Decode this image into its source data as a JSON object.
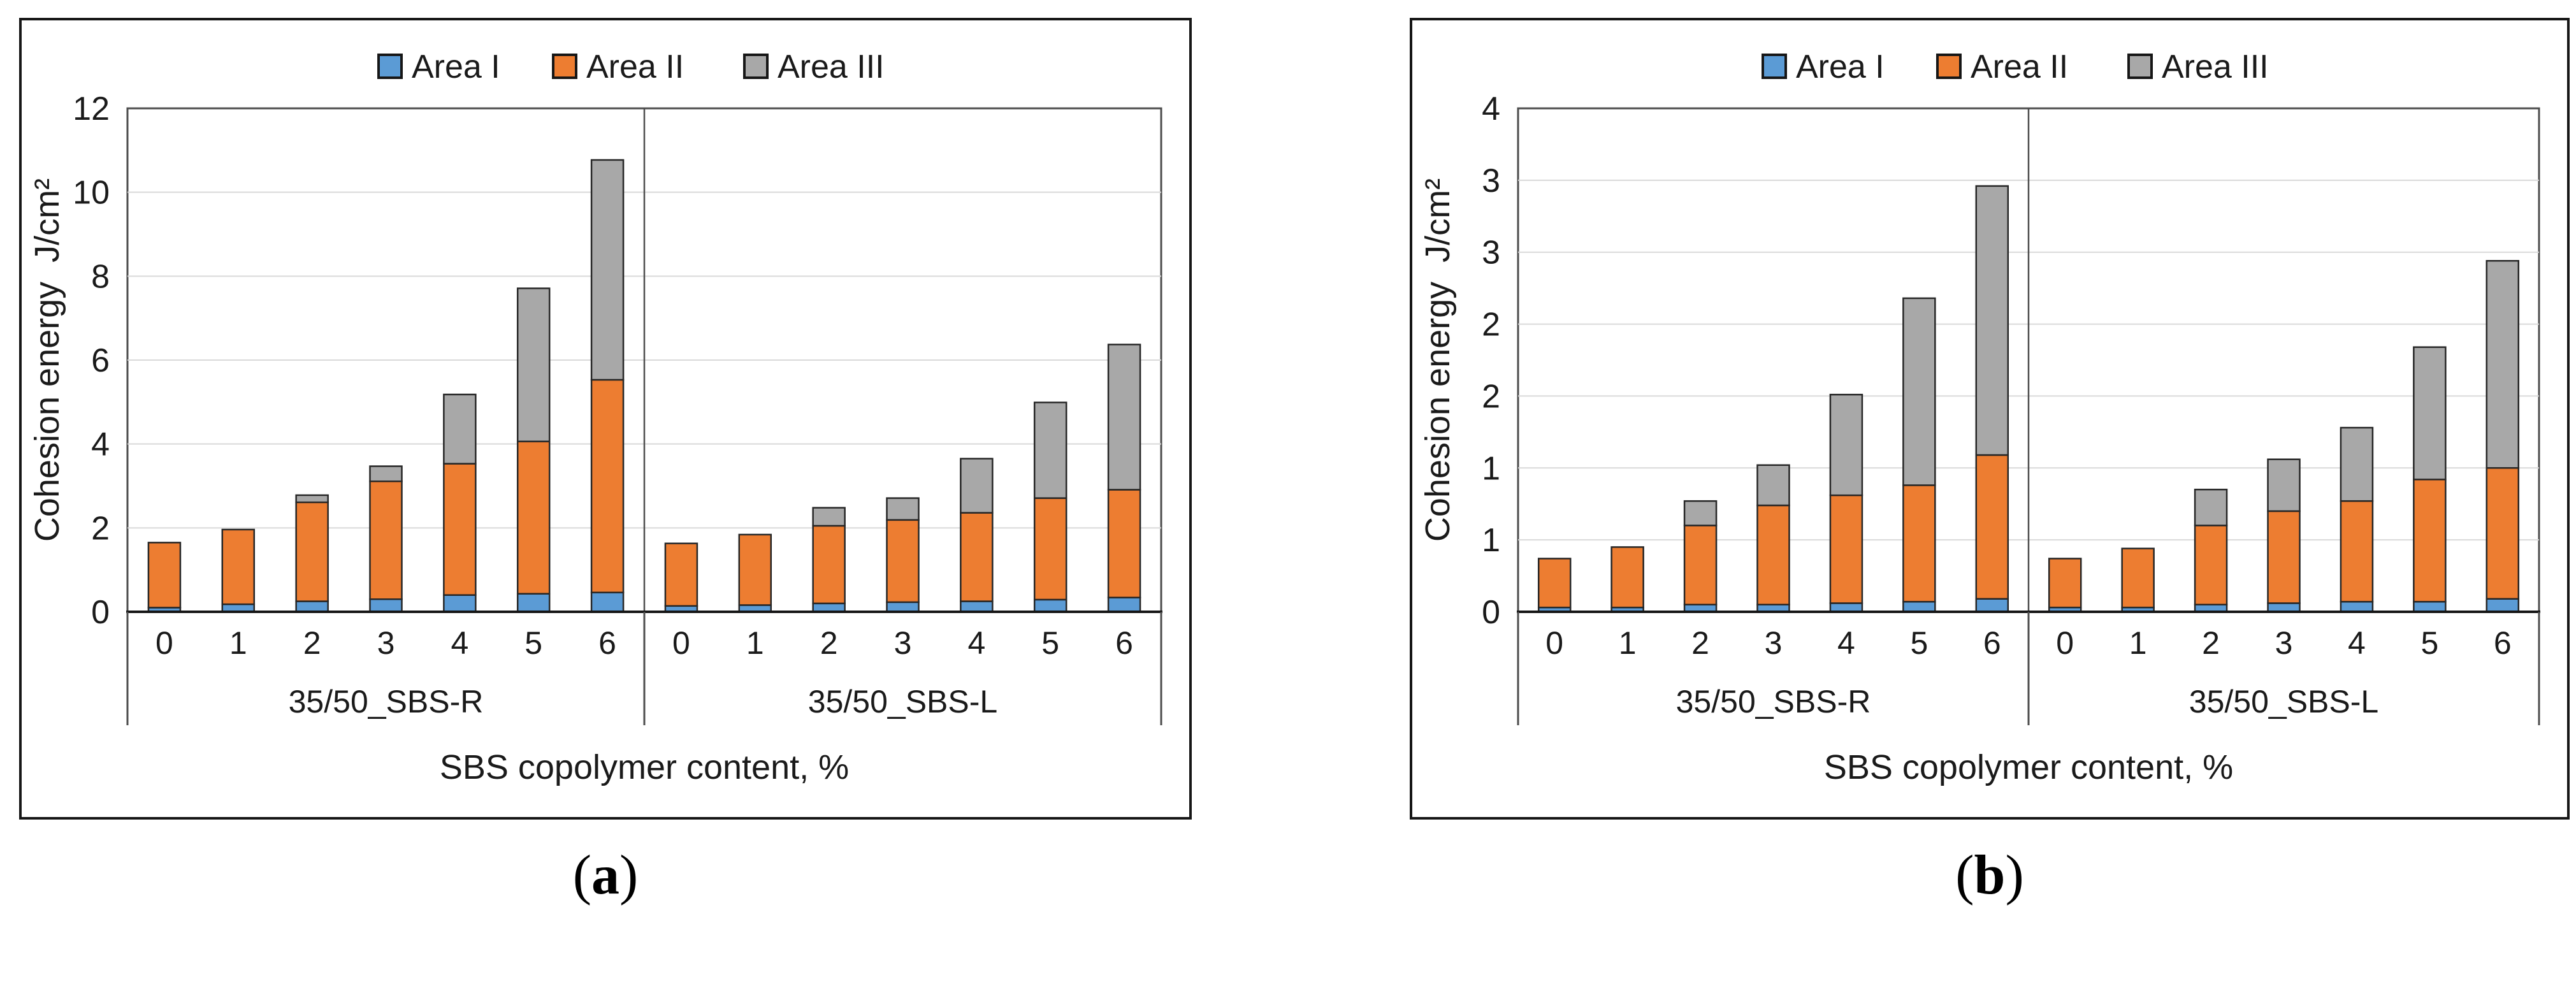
{
  "figure": {
    "background": "#ffffff",
    "series_names": [
      "Area I",
      "Area II",
      "Area III"
    ],
    "series_colors": [
      "#5B9BD5",
      "#ED7D31",
      "#A8A8A8"
    ],
    "segment_stroke": "#262626",
    "gridline_color": "#D9D9D9",
    "axis_color": "#4D4D4D",
    "text_color": "#1A1A1A"
  },
  "chart_data": [
    {
      "type": "bar",
      "stacked": true,
      "caption_prefix": "(",
      "caption_letter": "a",
      "caption_suffix": ")",
      "ylabel": "Cohesion energy",
      "ylabel_unit": "J/cm²",
      "xlabel": "SBS copolymer content, %",
      "ylim": [
        0,
        12
      ],
      "y_major": 2,
      "grid": true,
      "legend_position": "top",
      "y_ticks": [
        {
          "v": 0,
          "label": "0"
        },
        {
          "v": 2,
          "label": "2"
        },
        {
          "v": 4,
          "label": "4"
        },
        {
          "v": 6,
          "label": "6"
        },
        {
          "v": 8,
          "label": "8"
        },
        {
          "v": 10,
          "label": "10"
        },
        {
          "v": 12,
          "label": "12"
        }
      ],
      "categories": [
        "0",
        "1",
        "2",
        "3",
        "4",
        "5",
        "6"
      ],
      "groups": [
        {
          "label": "35/50_SBS-R",
          "series": [
            {
              "name": "Area I",
              "values": [
                0.1,
                0.18,
                0.25,
                0.3,
                0.4,
                0.43,
                0.46
              ]
            },
            {
              "name": "Area II",
              "values": [
                1.55,
                1.78,
                2.36,
                2.81,
                3.13,
                3.63,
                5.07
              ]
            },
            {
              "name": "Area III",
              "values": [
                0.0,
                0.0,
                0.17,
                0.36,
                1.65,
                3.65,
                5.24
              ]
            }
          ],
          "totals": [
            1.65,
            1.96,
            2.78,
            3.47,
            5.18,
            7.71,
            10.77
          ]
        },
        {
          "label": "35/50_SBS-L",
          "series": [
            {
              "name": "Area I",
              "values": [
                0.14,
                0.16,
                0.2,
                0.23,
                0.25,
                0.29,
                0.34
              ]
            },
            {
              "name": "Area II",
              "values": [
                1.49,
                1.68,
                1.85,
                1.96,
                2.11,
                2.42,
                2.57
              ]
            },
            {
              "name": "Area III",
              "values": [
                0.0,
                0.0,
                0.43,
                0.52,
                1.29,
                2.28,
                3.46
              ]
            }
          ],
          "totals": [
            1.63,
            1.84,
            2.48,
            2.71,
            3.65,
            4.99,
            6.37
          ]
        }
      ]
    },
    {
      "type": "bar",
      "stacked": true,
      "caption_prefix": "(",
      "caption_letter": "b",
      "caption_suffix": ")",
      "ylabel": "Cohesion energy",
      "ylabel_unit": "J/cm²",
      "xlabel": "SBS copolymer content, %",
      "ylim": [
        0,
        3.5
      ],
      "y_major": 0.5,
      "grid": true,
      "legend_position": "top",
      "y_ticks": [
        {
          "v": 0,
          "label": "0"
        },
        {
          "v": 0.5,
          "label": "1"
        },
        {
          "v": 1,
          "label": "1"
        },
        {
          "v": 1.5,
          "label": "2"
        },
        {
          "v": 2,
          "label": "2"
        },
        {
          "v": 2.5,
          "label": "3"
        },
        {
          "v": 3,
          "label": "3"
        },
        {
          "v": 3.5,
          "label": "4"
        }
      ],
      "categories": [
        "0",
        "1",
        "2",
        "3",
        "4",
        "5",
        "6"
      ],
      "groups": [
        {
          "label": "35/50_SBS-R",
          "series": [
            {
              "name": "Area I",
              "values": [
                0.03,
                0.03,
                0.05,
                0.05,
                0.06,
                0.07,
                0.09
              ]
            },
            {
              "name": "Area II",
              "values": [
                0.34,
                0.42,
                0.55,
                0.69,
                0.75,
                0.81,
                1.0
              ]
            },
            {
              "name": "Area III",
              "values": [
                0.0,
                0.0,
                0.17,
                0.28,
                0.7,
                1.3,
                1.87
              ]
            }
          ],
          "totals": [
            0.37,
            0.45,
            0.77,
            1.02,
            1.51,
            2.18,
            2.96
          ]
        },
        {
          "label": "35/50_SBS-L",
          "series": [
            {
              "name": "Area I",
              "values": [
                0.03,
                0.03,
                0.05,
                0.06,
                0.07,
                0.07,
                0.09
              ]
            },
            {
              "name": "Area II",
              "values": [
                0.34,
                0.41,
                0.55,
                0.64,
                0.7,
                0.85,
                0.91
              ]
            },
            {
              "name": "Area III",
              "values": [
                0.0,
                0.0,
                0.25,
                0.36,
                0.51,
                0.92,
                1.44
              ]
            }
          ],
          "totals": [
            0.37,
            0.44,
            0.85,
            1.06,
            1.28,
            1.84,
            2.44
          ]
        }
      ]
    }
  ]
}
